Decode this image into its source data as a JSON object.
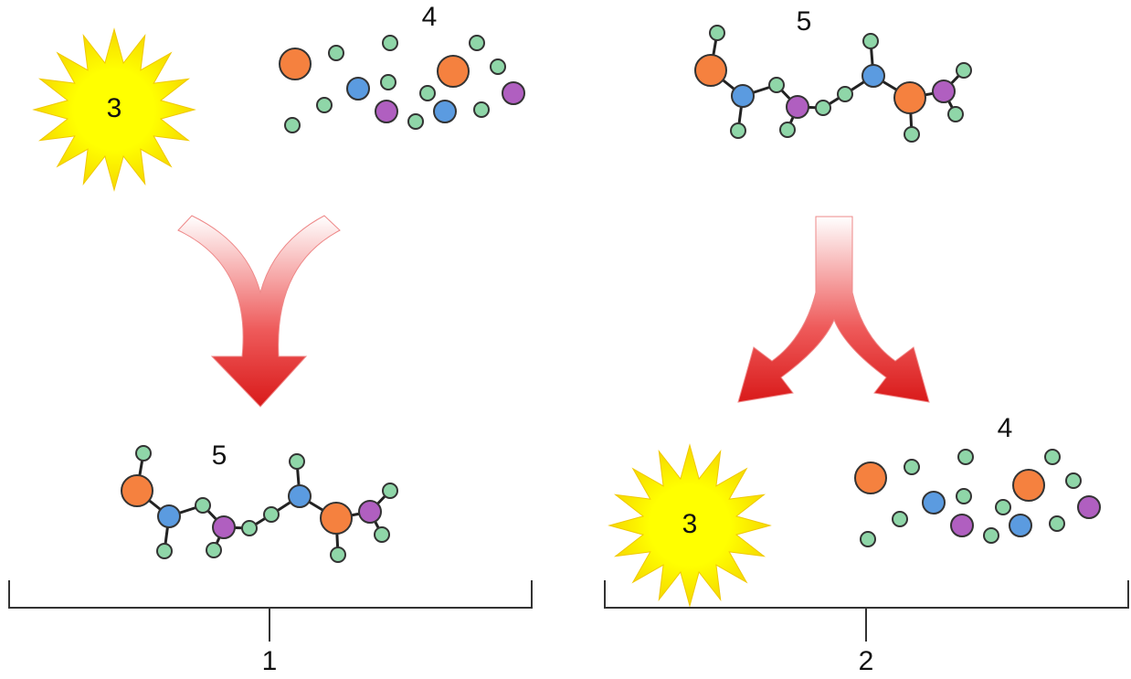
{
  "panels": [
    {
      "label": "1",
      "sun": "3",
      "atoms": "4",
      "molecule": "5"
    },
    {
      "label": "2",
      "molecule": "5",
      "sun": "3",
      "atoms": "4"
    }
  ]
}
